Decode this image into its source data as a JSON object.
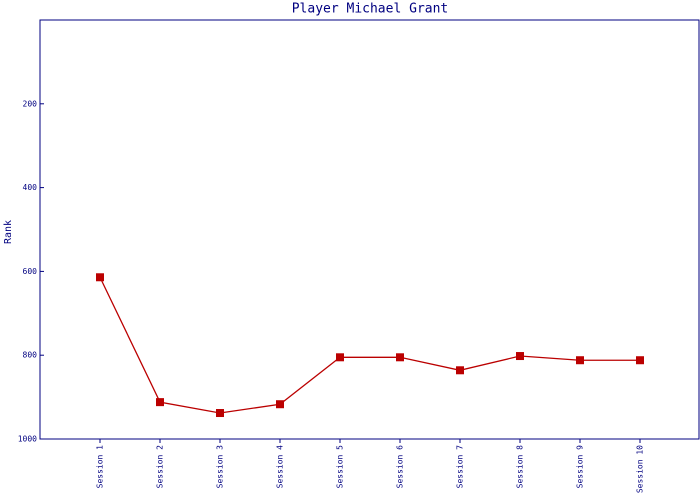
{
  "chart_data": {
    "type": "line",
    "title": "Player Michael Grant",
    "y_label": "Rank",
    "categories": [
      "Session 1",
      "Session 2",
      "Session 3",
      "Session 4",
      "Session 5",
      "Session 6",
      "Session 7",
      "Session 8",
      "Session 9",
      "Session 10"
    ],
    "series": [
      {
        "name": "Rank",
        "color": "#bb0000",
        "values": [
          614,
          912,
          938,
          917,
          805,
          805,
          836,
          802,
          812,
          812
        ]
      }
    ],
    "ylim": [
      0,
      1000
    ],
    "y_inverted": true,
    "yticks": [
      200,
      400,
      600,
      800,
      1000
    ],
    "grid": false
  }
}
